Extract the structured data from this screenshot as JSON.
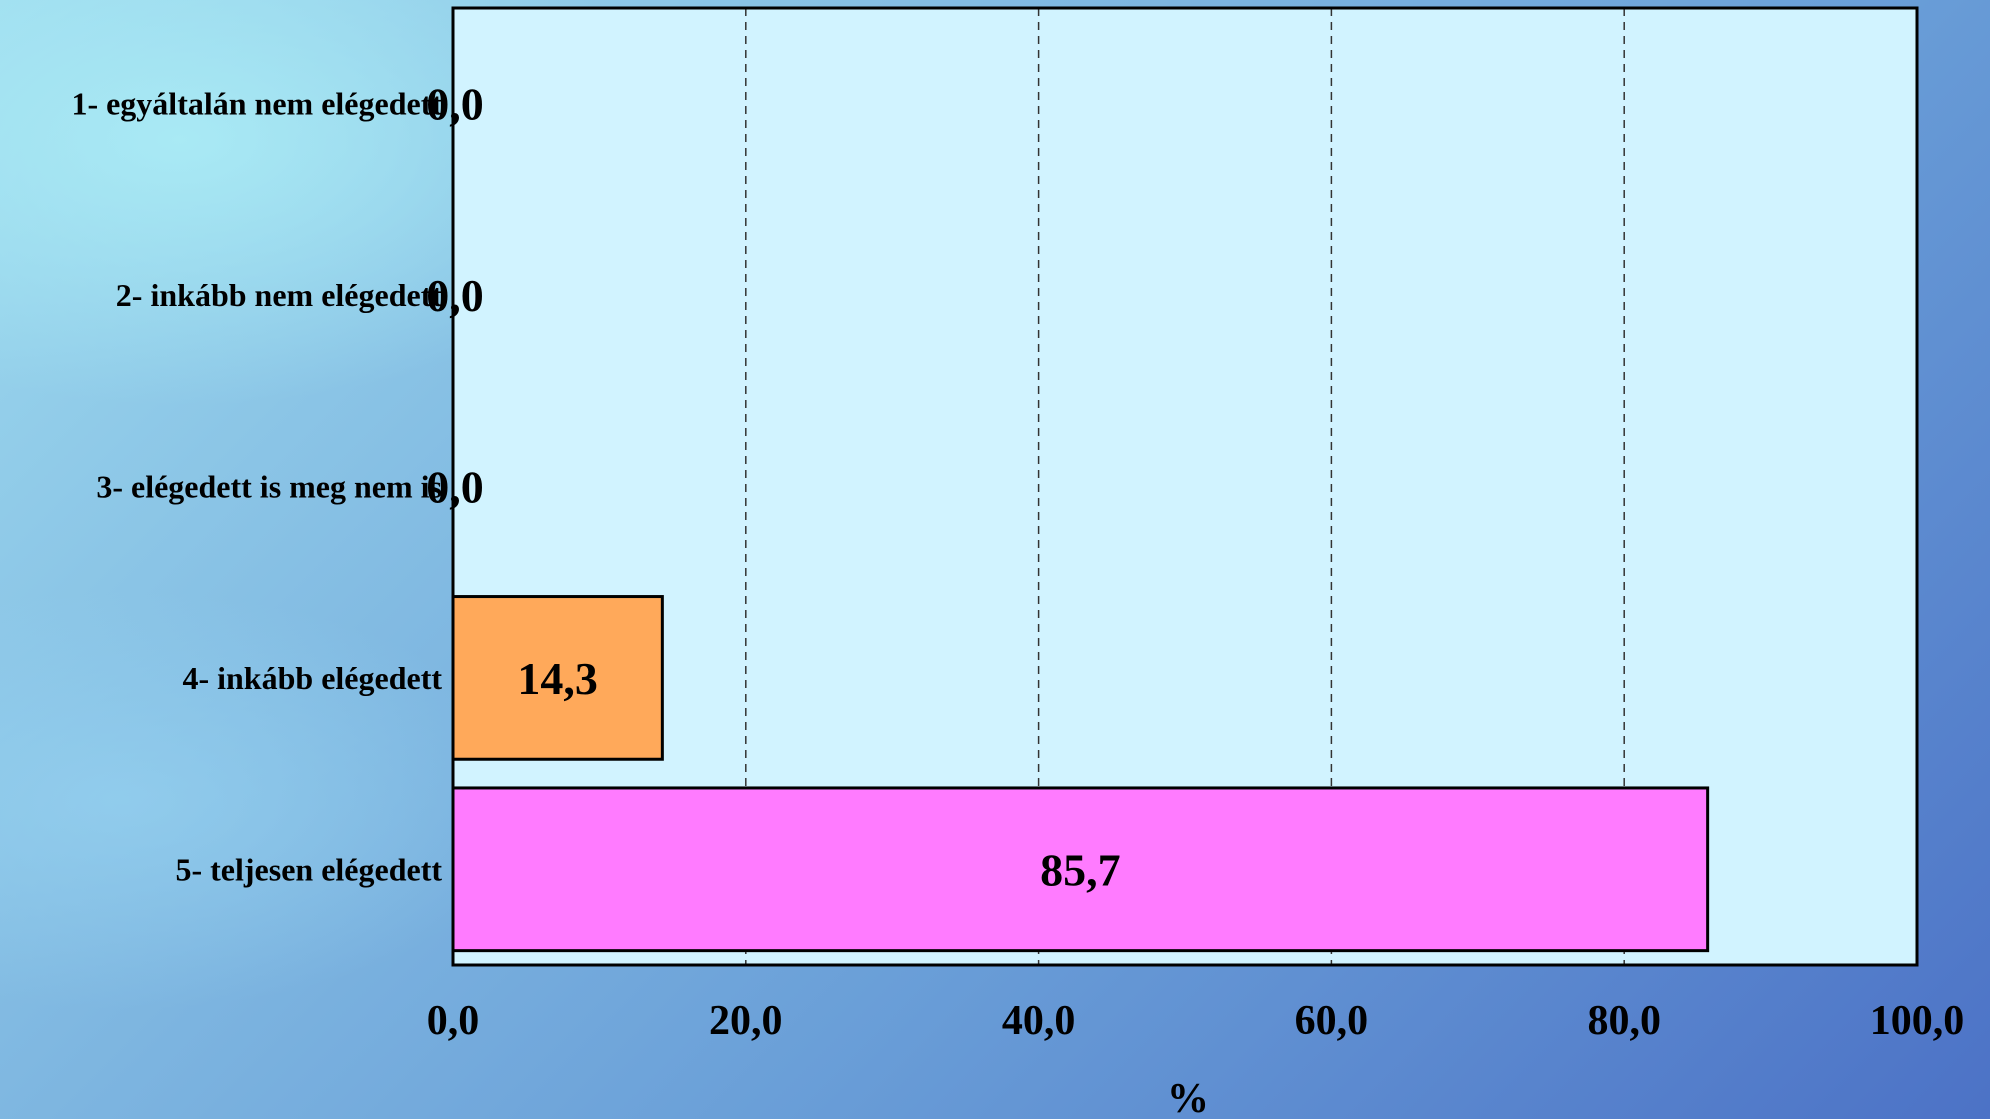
{
  "chart_data": {
    "type": "bar",
    "orientation": "horizontal",
    "categories": [
      "1- egyáltalán nem elégedett",
      "2- inkább nem elégedett",
      "3- elégedett is meg nem is",
      "4- inkább elégedett",
      "5- teljesen elégedett"
    ],
    "values": [
      0.0,
      0.0,
      0.0,
      14.3,
      85.7
    ],
    "data_labels": [
      "0,0",
      "0,0",
      "0,0",
      "14,3",
      "85,7"
    ],
    "bar_colors": [
      "#ffa95a",
      "#ffa95a",
      "#ffa95a",
      "#ffa95a",
      "#ff7bff"
    ],
    "xlim": [
      0,
      100
    ],
    "xticks": [
      0,
      20,
      40,
      60,
      80,
      100
    ],
    "xtick_labels": [
      "0,0",
      "20,0",
      "40,0",
      "60,0",
      "80,0",
      "100,0"
    ],
    "xlabel": "%",
    "grid": "vertical dashed",
    "plot_background": "#d1f3ff",
    "legend": "none"
  }
}
